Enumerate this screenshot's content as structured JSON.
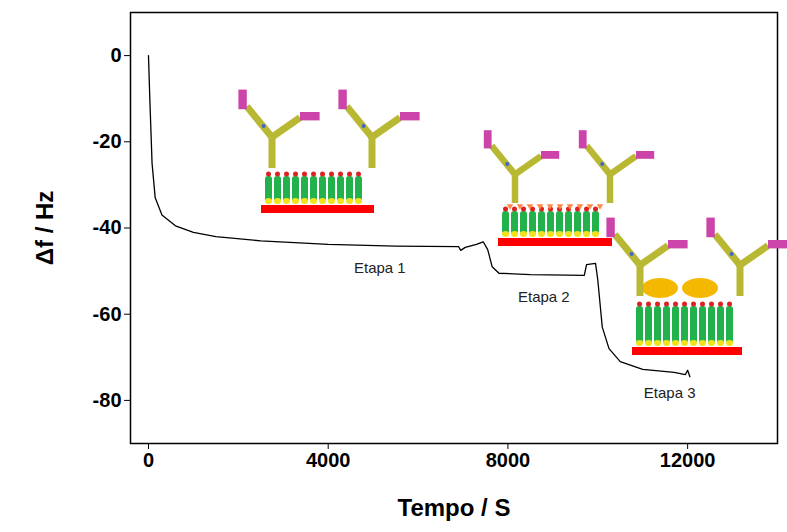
{
  "chart_data": {
    "type": "line",
    "x_label": "Tempo / S",
    "y_label": "Δf / Hz",
    "color": "#000000",
    "x": [
      0,
      30,
      80,
      150,
      300,
      600,
      1000,
      1500,
      2500,
      4000,
      5500,
      6900,
      6950,
      7050,
      7300,
      7450,
      7550,
      7650,
      7800,
      8500,
      9700,
      9750,
      9950,
      10000,
      10100,
      10250,
      10500,
      11000,
      11700,
      11950,
      12000,
      12050
    ],
    "values": [
      0,
      -10,
      -25,
      -33,
      -37,
      -39.5,
      -41,
      -42,
      -43,
      -43.8,
      -44.2,
      -44.3,
      -45.2,
      -44.5,
      -43.8,
      -43.2,
      -45,
      -49,
      -50.5,
      -50.8,
      -51,
      -48.5,
      -48.2,
      -52,
      -63,
      -68,
      -71,
      -72.8,
      -73.5,
      -74,
      -73,
      -74.5
    ],
    "xlim": [
      -400,
      14000
    ],
    "xticks": [
      0,
      4000,
      8000,
      12000
    ],
    "ylim": [
      -90,
      10
    ],
    "yticks": [
      0,
      -20,
      -40,
      -60,
      -80
    ],
    "annotations": [
      {
        "text": "Etapa 1",
        "x": 5150,
        "y": -49.3
      },
      {
        "text": "Etapa 2",
        "x": 8800,
        "y": -56
      },
      {
        "text": "Etapa 3",
        "x": 11600,
        "y": -78.3
      }
    ]
  }
}
